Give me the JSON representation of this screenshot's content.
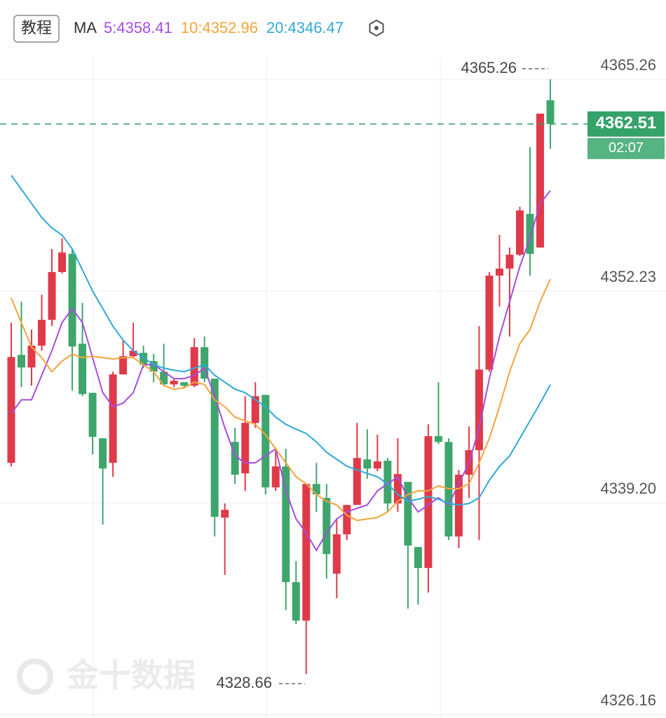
{
  "header": {
    "button": "教程",
    "indicator": "MA"
  },
  "watermark": "金十数据",
  "chart_data": {
    "type": "candlestick",
    "up_color": "#e03a4a",
    "down_color": "#3ea66c",
    "ylim": [
      4325.96,
      4370.14
    ],
    "yticks": [
      4326.16,
      {
        "value": 4339.2,
        "label": "4339.20"
      },
      4352.23,
      4365.26
    ],
    "grid": true,
    "high_label": 4365.26,
    "low_label": 4328.66,
    "last_price": 4362.51,
    "countdown": "02:07",
    "open": [
      4341.66,
      4348.3,
      4347.53,
      4348.87,
      4350.46,
      4353.4,
      4354.52,
      4348.99,
      4345.97,
      4343.17,
      4341.66,
      4347.1,
      4348.22,
      4348.43,
      4347.92,
      4347.27,
      4346.49,
      4346.62,
      4346.41,
      4348.78,
      4346.84,
      4338.29,
      4342.95,
      4341.01,
      4344.12,
      4345.84,
      4340.15,
      4341.44,
      4334.32,
      4331.95,
      4340.36,
      4339.5,
      4334.84,
      4337.26,
      4339.07,
      4341.87,
      4341.31,
      4341.79,
      4339.16,
      4340.49,
      4336.48,
      4335.19,
      4343.3,
      4342.95,
      4337.13,
      4340.93,
      4342.44,
      4347.4,
      4353.18,
      4353.61,
      4354.47,
      4356.98,
      4354.91,
      4363.97
    ],
    "high": [
      4350.29,
      4351.58,
      4349.86,
      4352.01,
      4354.82,
      4355.47,
      4354.82,
      4351.5,
      4345.97,
      4343.17,
      4347.27,
      4349.21,
      4350.29,
      4348.87,
      4348.35,
      4348.99,
      4346.84,
      4346.62,
      4349.34,
      4349.43,
      4346.84,
      4339.16,
      4343.82,
      4345.76,
      4346.62,
      4345.84,
      4342.52,
      4342.52,
      4335.62,
      4340.36,
      4341.66,
      4340.36,
      4338.21,
      4339.07,
      4344.12,
      4343.73,
      4343.39,
      4341.96,
      4343.17,
      4340.49,
      4336.48,
      4344.03,
      4346.62,
      4343.17,
      4341.23,
      4343.9,
      4350.07,
      4353.4,
      4355.68,
      4354.91,
      4357.41,
      4361.08,
      4363.15,
      4365.26
    ],
    "low": [
      4341.44,
      4346.32,
      4346.41,
      4348.56,
      4350.07,
      4353.31,
      4346.1,
      4345.76,
      4342.18,
      4337.86,
      4340.8,
      4347.1,
      4348.13,
      4347.48,
      4346.62,
      4346.41,
      4346.32,
      4346.32,
      4346.32,
      4346.62,
      4337.13,
      4334.76,
      4340.36,
      4339.93,
      4343.82,
      4339.72,
      4339.93,
      4332.6,
      4331.74,
      4328.66,
      4338.64,
      4334.54,
      4333.33,
      4336.91,
      4339.07,
      4340.67,
      4341.14,
      4338.64,
      4338.64,
      4332.69,
      4332.94,
      4333.68,
      4342.82,
      4336.91,
      4336.4,
      4339.5,
      4336.91,
      4347.27,
      4351.28,
      4349.43,
      4354.39,
      4353.18,
      4354.91,
      4360.99
    ],
    "close": [
      4348.17,
      4347.53,
      4348.87,
      4350.46,
      4353.4,
      4354.6,
      4348.82,
      4345.89,
      4343.26,
      4341.31,
      4347.1,
      4348.22,
      4348.56,
      4347.7,
      4347.27,
      4346.49,
      4346.71,
      4346.41,
      4348.78,
      4346.84,
      4338.34,
      4338.77,
      4340.93,
      4344.12,
      4345.76,
      4340.15,
      4341.44,
      4334.32,
      4331.95,
      4340.36,
      4339.72,
      4336.05,
      4337.26,
      4339.07,
      4341.96,
      4341.31,
      4341.75,
      4339.16,
      4340.97,
      4336.57,
      4335.19,
      4343.3,
      4342.95,
      4337.13,
      4340.93,
      4342.44,
      4347.4,
      4353.18,
      4353.61,
      4354.47,
      4357.19,
      4354.52,
      4363.15,
      4362.51
    ],
    "series": [
      {
        "label": "5:4358.41",
        "color": "#a64ddf",
        "values": [
          4344.68,
          4345.54,
          4345.54,
          4347.05,
          4348.56,
          4350.29,
          4351.15,
          4350.29,
          4348.13,
          4345.98,
          4345.11,
          4345.33,
          4345.98,
          4347.7,
          4347.7,
          4347.27,
          4346.84,
          4346.84,
          4347.05,
          4347.49,
          4345.76,
          4343.82,
          4342.09,
          4341.66,
          4341.66,
          4342.09,
          4342.52,
          4339.94,
          4338.21,
          4337.35,
          4336.27,
          4337.35,
          4338.21,
          4338.64,
          4338.86,
          4339.07,
          4339.94,
          4340.37,
          4340.8,
          4339.51,
          4338.64,
          4339.07,
          4339.51,
          4339.07,
          4340.37,
          4341.66,
          4343.82,
          4346.84,
          4349.43,
          4351.58,
          4353.74,
          4355.47,
          4357.62,
          4358.41
        ]
      },
      {
        "label": "10:4352.96",
        "color": "#f4a43a",
        "values": [
          4351.8,
          4350.29,
          4348.78,
          4348.13,
          4347.27,
          4347.92,
          4348.35,
          4348.13,
          4348.22,
          4348.13,
          4348.05,
          4348.13,
          4348.13,
          4347.7,
          4347.27,
          4346.41,
          4346.19,
          4346.28,
          4346.62,
          4346.49,
          4345.54,
          4345.11,
          4344.47,
          4344.25,
          4344.03,
          4343.39,
          4342.52,
          4341.66,
          4340.8,
          4340.37,
          4339.72,
          4339.29,
          4339.07,
          4338.43,
          4338.12,
          4338.21,
          4338.3,
          4338.64,
          4339.29,
          4339.72,
          4339.94,
          4339.94,
          4340.24,
          4340.07,
          4340.07,
          4340.37,
          4341.66,
          4343.17,
          4345.11,
          4347.27,
          4349.0,
          4349.86,
          4351.58,
          4352.96
        ]
      },
      {
        "label": "20:4346.47",
        "color": "#30a8d8",
        "values": [
          4359.35,
          4358.49,
          4357.62,
          4356.76,
          4356.11,
          4355.68,
          4354.82,
          4353.53,
          4352.23,
          4351.15,
          4350.07,
          4349.21,
          4348.56,
          4348.13,
          4347.7,
          4347.49,
          4347.36,
          4347.27,
          4347.49,
          4347.7,
          4347.05,
          4346.62,
          4346.19,
          4345.98,
          4345.54,
          4345.11,
          4344.47,
          4344.03,
          4343.73,
          4343.47,
          4342.95,
          4342.31,
          4341.88,
          4341.45,
          4341.23,
          4341.01,
          4340.8,
          4340.37,
          4339.72,
          4339.29,
          4339.42,
          4339.59,
          4339.42,
          4339.16,
          4339.07,
          4339.16,
          4339.51,
          4340.58,
          4341.45,
          4342.09,
          4343.17,
          4344.25,
          4345.33,
          4346.47
        ]
      }
    ]
  }
}
